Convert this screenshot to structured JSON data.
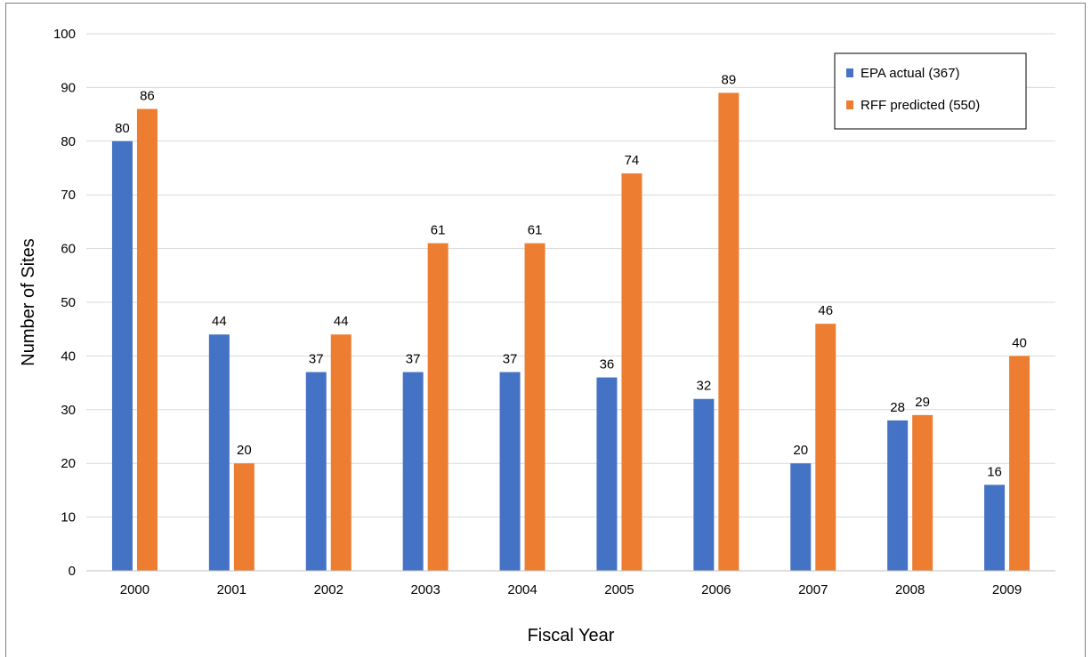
{
  "chart_data": {
    "type": "bar",
    "categories": [
      "2000",
      "2001",
      "2002",
      "2003",
      "2004",
      "2005",
      "2006",
      "2007",
      "2008",
      "2009"
    ],
    "series": [
      {
        "name": "EPA actual (367)",
        "color": "#4472c4",
        "values": [
          80,
          44,
          37,
          37,
          37,
          36,
          32,
          20,
          28,
          16
        ]
      },
      {
        "name": "RFF predicted (550)",
        "color": "#ed7d31",
        "values": [
          86,
          20,
          44,
          61,
          61,
          74,
          89,
          46,
          29,
          40
        ]
      }
    ],
    "title": "",
    "xlabel": "Fiscal Year",
    "ylabel": "Number of Sites",
    "ylim": [
      0,
      100
    ],
    "yticks": [
      0,
      10,
      20,
      30,
      40,
      50,
      60,
      70,
      80,
      90,
      100
    ],
    "grid": true,
    "legend_position": "top-right",
    "data_labels": true
  }
}
